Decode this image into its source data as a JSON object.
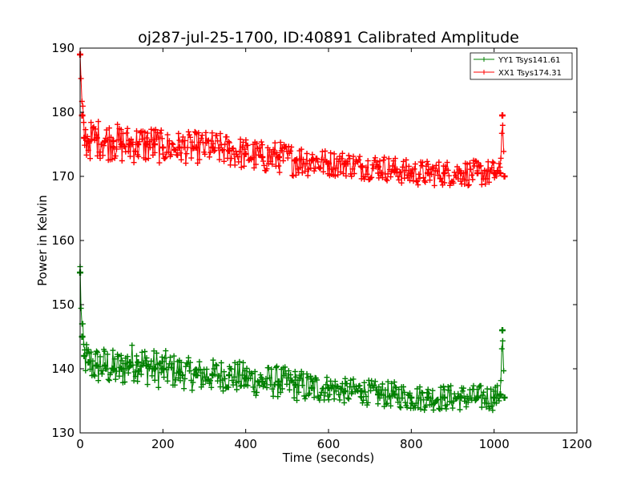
{
  "chart_data": {
    "type": "line",
    "title": "oj287-jul-25-1700, ID:40891 Calibrated Amplitude",
    "xlabel": "Time (seconds)",
    "ylabel": "Power in Kelvin",
    "xlim": [
      0,
      1200
    ],
    "ylim": [
      130,
      190
    ],
    "x_ticks": [
      0,
      200,
      400,
      600,
      800,
      1000,
      1200
    ],
    "y_ticks": [
      130,
      140,
      150,
      160,
      170,
      180,
      190
    ],
    "x_tick_labels": [
      "0",
      "200",
      "400",
      "600",
      "800",
      "1000",
      "1200"
    ],
    "y_tick_labels": [
      "130",
      "140",
      "150",
      "160",
      "170",
      "180",
      "190"
    ],
    "grid": false,
    "legend_position": "top-right",
    "marker": "plus",
    "series": [
      {
        "name": "YY1 Tsys141.61",
        "color": "#008000",
        "x": [
          0,
          5,
          10,
          20,
          40,
          60,
          80,
          100,
          120,
          140,
          160,
          180,
          200,
          240,
          280,
          320,
          360,
          400,
          440,
          480,
          520,
          560,
          600,
          640,
          680,
          720,
          760,
          800,
          840,
          880,
          920,
          960,
          1000,
          1015,
          1020,
          1025
        ],
        "y": [
          155,
          145,
          142,
          141,
          140.5,
          140.5,
          140,
          140,
          141,
          141,
          140.5,
          140,
          140,
          139.5,
          139,
          139,
          139,
          138.5,
          138,
          138,
          137.5,
          137,
          137,
          136.5,
          136.5,
          136,
          136,
          135.5,
          135.5,
          135.5,
          135.5,
          135.5,
          135.5,
          136,
          146,
          135.5
        ],
        "spread": [
          3,
          3,
          3,
          3,
          3,
          3,
          3,
          3,
          3,
          3,
          3,
          3,
          3,
          2.5,
          2.5,
          2.5,
          2.5,
          2.5,
          2.5,
          2.5,
          2.5,
          2.5,
          2,
          2,
          2,
          2,
          2,
          2,
          2,
          2,
          2,
          2,
          2,
          1.5,
          0,
          0.5
        ]
      },
      {
        "name": "XX1 Tsys174.31",
        "color": "#ff0000",
        "x": [
          0,
          5,
          10,
          20,
          40,
          60,
          80,
          100,
          120,
          140,
          160,
          180,
          200,
          240,
          280,
          320,
          360,
          400,
          440,
          480,
          520,
          560,
          600,
          640,
          680,
          720,
          760,
          800,
          840,
          880,
          920,
          960,
          1000,
          1015,
          1020,
          1025
        ],
        "y": [
          189,
          179.5,
          176,
          175.5,
          176,
          175.5,
          175.5,
          175,
          175,
          175,
          175,
          175,
          174.5,
          174.5,
          174.5,
          174.5,
          174,
          173.5,
          173,
          173,
          172.5,
          172.5,
          172,
          172,
          171.5,
          171.5,
          171,
          170.5,
          170.5,
          170.5,
          170.5,
          170.5,
          170.5,
          170.5,
          179.5,
          170
        ],
        "spread": [
          0,
          3,
          3,
          3,
          3,
          3,
          3,
          3,
          3,
          3,
          3,
          3,
          2.5,
          2.5,
          2.5,
          2.5,
          2.5,
          2.5,
          2.5,
          2.5,
          2.5,
          2.5,
          2,
          2,
          2,
          2,
          2,
          2,
          2,
          2,
          2,
          2,
          2,
          1.5,
          0,
          0.5
        ]
      }
    ]
  }
}
